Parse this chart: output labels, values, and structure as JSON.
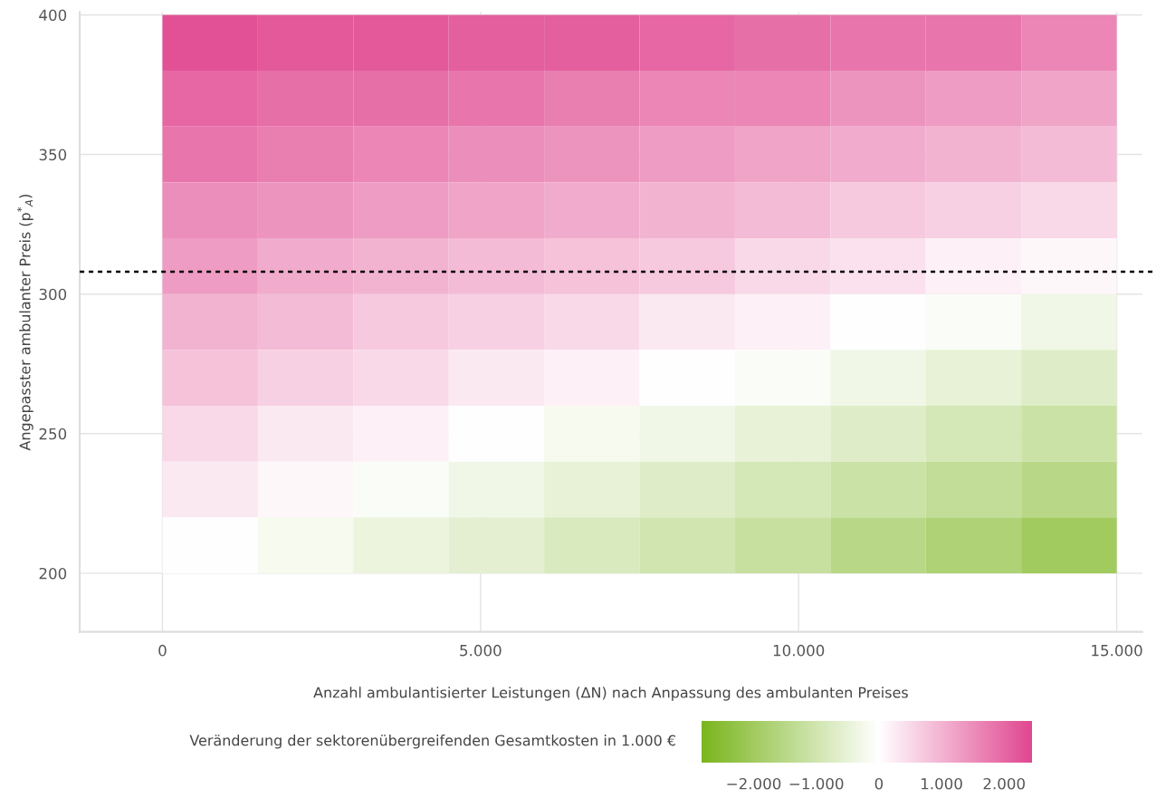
{
  "chart_data": {
    "type": "heatmap",
    "xlabel": "Anzahl ambulantisierter Leistungen (ΔN) nach Anpassung des ambulanten Preises",
    "ylabel": "Angepasster ambulanter Preis (p$^{*}$$_{A}$)",
    "clabel": "Veränderung der sektorenübergreifenden Gesamtkosten in 1.000 €",
    "x": [
      750,
      2250,
      3750,
      5250,
      6750,
      8250,
      9750,
      11250,
      12750,
      14250
    ],
    "y": [
      390,
      370,
      350,
      330,
      310,
      290,
      270,
      250,
      230,
      210
    ],
    "cells": [
      [
        2300,
        2200,
        2200,
        2100,
        2100,
        2000,
        1900,
        1800,
        1800,
        1600
      ],
      [
        2000,
        1900,
        1900,
        1800,
        1700,
        1600,
        1600,
        1400,
        1300,
        1200
      ],
      [
        1800,
        1700,
        1600,
        1500,
        1400,
        1300,
        1200,
        1100,
        1000,
        900
      ],
      [
        1500,
        1400,
        1300,
        1200,
        1100,
        1000,
        900,
        700,
        600,
        500
      ],
      [
        1300,
        1100,
        1000,
        900,
        800,
        700,
        500,
        400,
        200,
        100
      ],
      [
        1000,
        900,
        700,
        600,
        500,
        300,
        200,
        0,
        -100,
        -300
      ],
      [
        800,
        600,
        500,
        300,
        200,
        0,
        -100,
        -300,
        -500,
        -700
      ],
      [
        500,
        300,
        200,
        0,
        -200,
        -300,
        -500,
        -700,
        -900,
        -1100
      ],
      [
        300,
        100,
        -100,
        -300,
        -500,
        -700,
        -900,
        -1100,
        -1300,
        -1500
      ],
      [
        0,
        -200,
        -400,
        -600,
        -800,
        -1000,
        -1200,
        -1500,
        -1700,
        -2000
      ]
    ],
    "colors": [
      "#7ab51d",
      "#ffffff",
      "#e0468f"
    ],
    "clim": [
      -2830,
      2450
    ],
    "cticks": [
      {
        "value": -2000,
        "label": "−2.000"
      },
      {
        "value": -1000,
        "label": "−1.000"
      },
      0,
      {
        "value": 1000,
        "label": "1.000"
      },
      {
        "value": 2000,
        "label": "2.000"
      }
    ],
    "xlim": [
      -1300,
      15400
    ],
    "xticks": [
      0,
      {
        "value": 5000,
        "label": "5.000"
      },
      {
        "value": 10000,
        "label": "10.000"
      },
      {
        "value": 15000,
        "label": "15.000"
      }
    ],
    "ylim": [
      179,
      401
    ],
    "yticks": [
      200,
      250,
      300,
      350,
      400
    ],
    "grid": true,
    "ref_lines": [
      {
        "axis": "y",
        "value": 308,
        "color": "#000000",
        "line_style": "dotted"
      }
    ]
  }
}
